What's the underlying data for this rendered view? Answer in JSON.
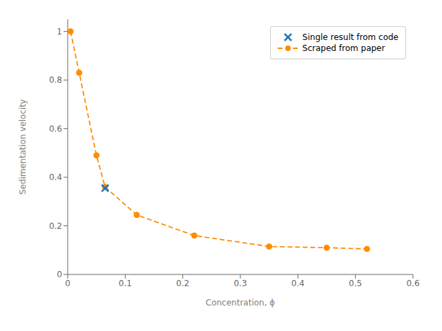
{
  "chart_data": {
    "type": "line",
    "xlabel": "Concentration, ϕ",
    "ylabel": "Sedimentation velocity",
    "xlim": [
      0,
      0.6
    ],
    "ylim": [
      0.0,
      1.05
    ],
    "xticks": [
      0,
      0.1,
      0.2,
      0.3,
      0.4,
      0.5,
      0.6
    ],
    "yticks": [
      0,
      0.2,
      0.4,
      0.6,
      0.8,
      1
    ],
    "grid": false,
    "legend": "upper right",
    "series": [
      {
        "name": "Scraped from paper",
        "type": "line",
        "color": "#FF8C00",
        "marker": "o",
        "line_style": "dashed",
        "x": [
          0.005,
          0.02,
          0.05,
          0.065,
          0.12,
          0.22,
          0.35,
          0.45,
          0.52
        ],
        "values": [
          1.0,
          0.83,
          0.49,
          0.36,
          0.245,
          0.16,
          0.115,
          0.11,
          0.105
        ]
      },
      {
        "name": "Single result from code",
        "type": "scatter",
        "color": "#1f77b4",
        "marker": "x",
        "x": [
          0.065
        ],
        "values": [
          0.355
        ]
      }
    ]
  }
}
